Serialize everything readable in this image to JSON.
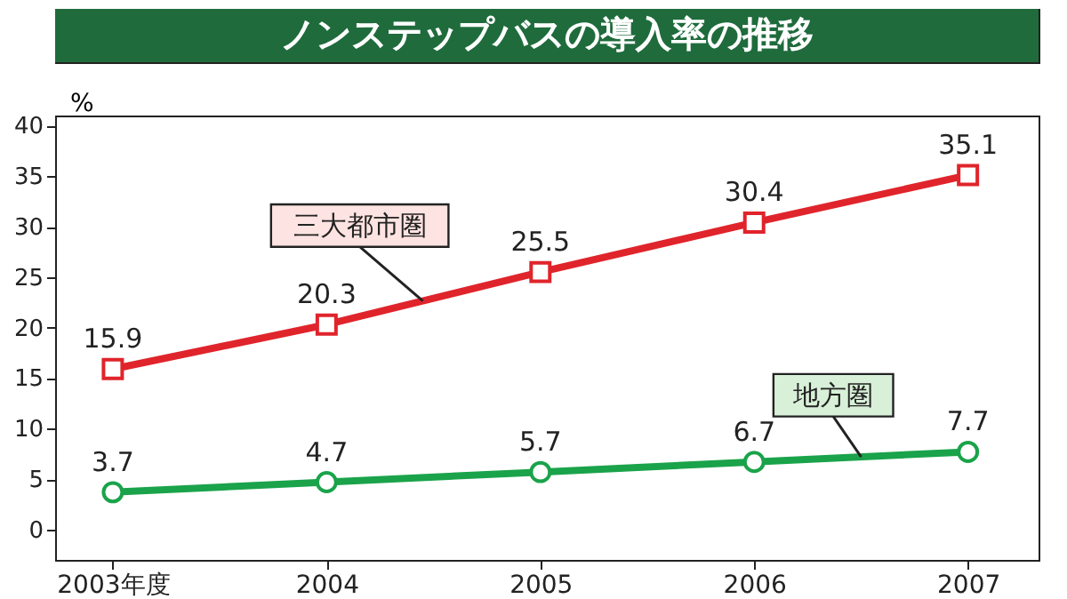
{
  "chart_data": {
    "type": "line",
    "title": "ノンステップバスの導入率の推移",
    "ylabel": "%",
    "categories": [
      "2003年度",
      "2004",
      "2005",
      "2006",
      "2007"
    ],
    "series": [
      {
        "name": "三大都市圏",
        "color": "#e0242b",
        "marker": "square",
        "values": [
          15.9,
          20.3,
          25.5,
          30.4,
          35.1
        ]
      },
      {
        "name": "地方圏",
        "color": "#1aa34a",
        "marker": "circle",
        "values": [
          3.7,
          4.7,
          5.7,
          6.7,
          7.7
        ]
      }
    ],
    "ylim": [
      -3,
      41
    ],
    "yticks": [
      0,
      5,
      10,
      15,
      20,
      25,
      30,
      35,
      40
    ],
    "grid": false,
    "data_labels": true,
    "legend": false,
    "line_style": "solid"
  }
}
